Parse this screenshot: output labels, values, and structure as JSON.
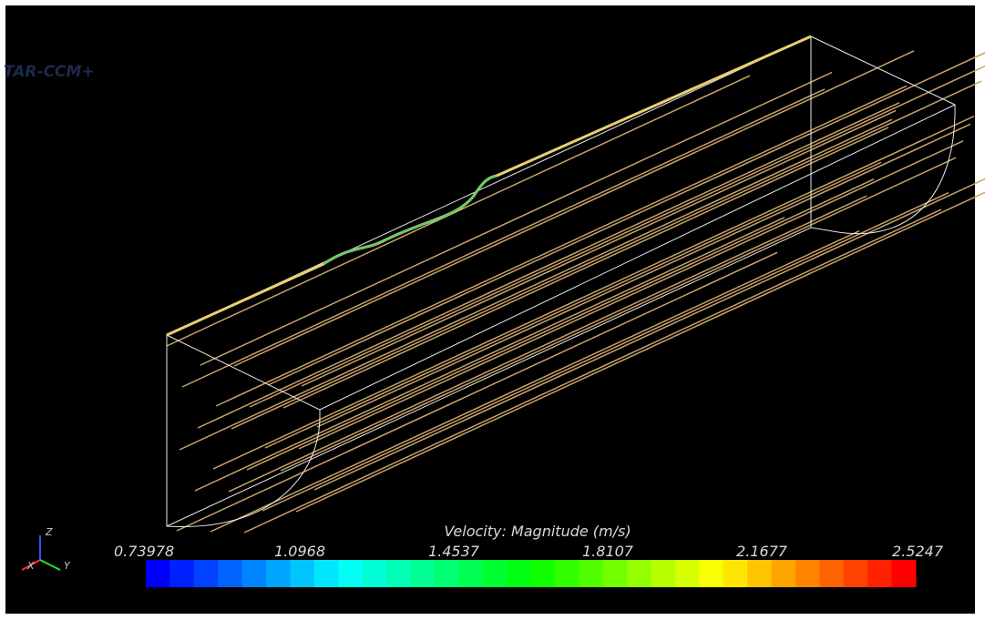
{
  "watermark": "TAR-CCM+",
  "triad": {
    "z": "Z",
    "x": "X",
    "y": "Y"
  },
  "colorbar": {
    "title": "Velocity: Magnitude (m/s)",
    "ticks": [
      0.73978,
      1.0968,
      1.4537,
      1.8107,
      2.1677,
      2.5247
    ]
  }
}
